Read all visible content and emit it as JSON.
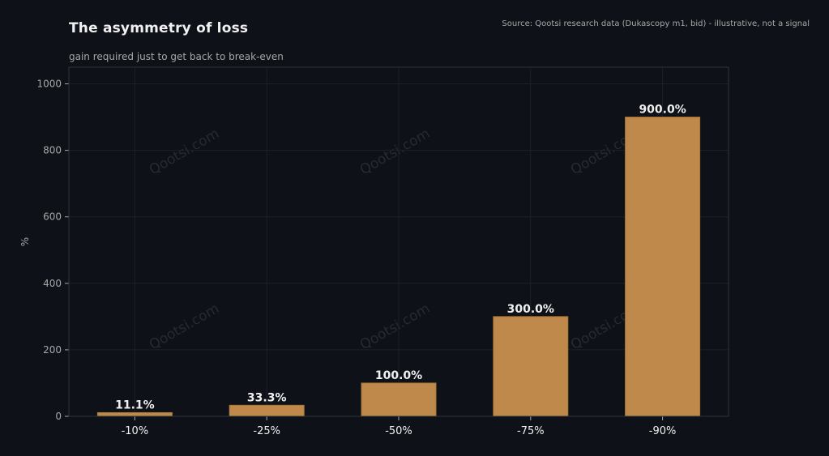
{
  "header": {
    "title": "The asymmetry of loss",
    "subtitle": "gain required just to get back to break-even",
    "source": "Source: Qootsi research data (Dukascopy m1, bid) - illustrative, not a signal"
  },
  "watermark": "Qootsi.com",
  "colors": {
    "background": "#0e1117",
    "bar": "#bf894b",
    "grid": "#1c2029",
    "frame": "#2d323b",
    "tick_text": "#a8a8a8",
    "label_text": "#f0f0f0",
    "watermark": "#262a31"
  },
  "chart_data": {
    "type": "bar",
    "categories": [
      "-10%",
      "-25%",
      "-50%",
      "-75%",
      "-90%"
    ],
    "values": [
      11.1,
      33.3,
      100.0,
      300.0,
      900.0
    ],
    "data_labels": [
      "11.1%",
      "33.3%",
      "100.0%",
      "300.0%",
      "900.0%"
    ],
    "title": "The asymmetry of loss",
    "subtitle": "gain required just to get back to break-even",
    "xlabel": "",
    "ylabel": "%",
    "ylim": [
      0,
      1050
    ],
    "yticks": [
      0,
      200,
      400,
      600,
      800,
      1000
    ],
    "grid": true,
    "legend": "none"
  }
}
